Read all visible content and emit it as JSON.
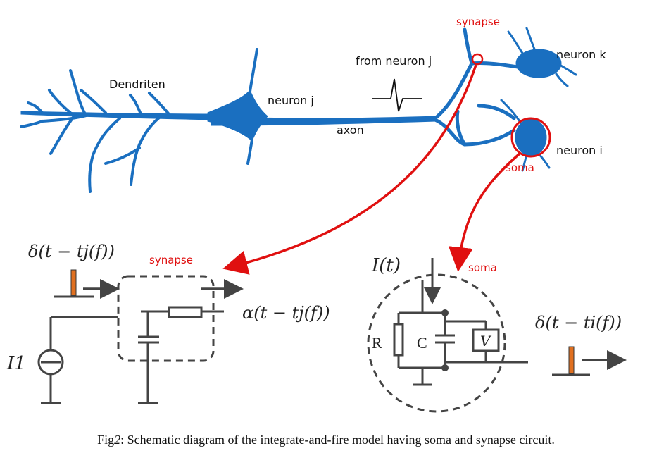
{
  "neuron": {
    "dendrites_label": "Dendriten",
    "neuron_j_label": "neuron j",
    "axon_label": "axon",
    "from_label": "from neuron j",
    "neuron_k_label": "neuron k",
    "neuron_i_label": "neuron i",
    "synapse_label": "synapse",
    "soma_label": "soma"
  },
  "synapse_circuit": {
    "input_label": "δ(t − tj(f))",
    "output_label": "α(t − tj(f))",
    "box_label": "synapse",
    "source_label": "I1"
  },
  "soma_circuit": {
    "current_label": "I(t)",
    "box_label": "soma",
    "r_label": "R",
    "c_label": "C",
    "v_label": "V",
    "output_label": "δ(t − ti(f))"
  },
  "caption": {
    "prefix": "Fig",
    "number": "2",
    "text": ": Schematic diagram of the integrate-and-fire model having soma and synapse circuit."
  },
  "colors": {
    "neuron_blue": "#1a6fc0",
    "highlight_red": "#e01010",
    "wire_gray": "#444444",
    "pulse_orange": "#e07020"
  }
}
